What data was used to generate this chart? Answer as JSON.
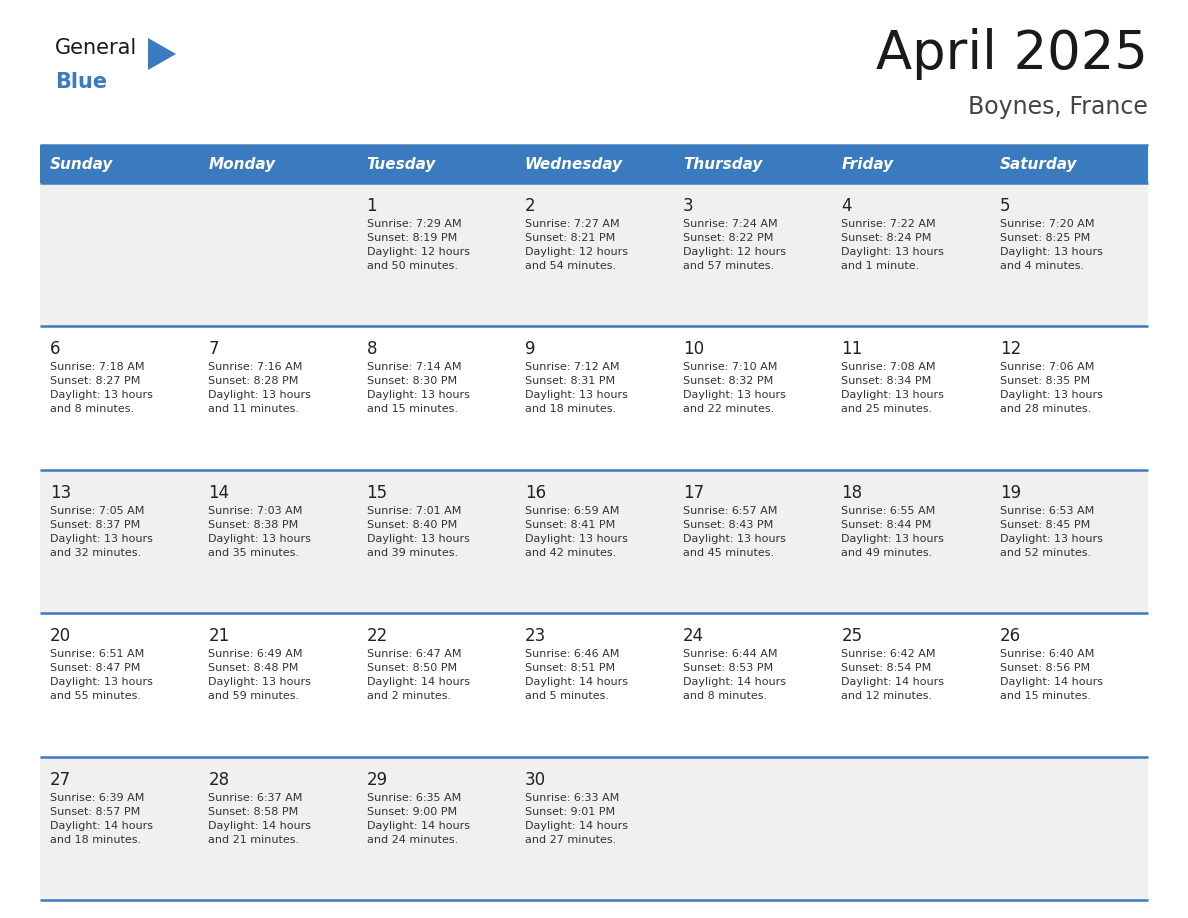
{
  "title": "April 2025",
  "subtitle": "Boynes, France",
  "days_of_week": [
    "Sunday",
    "Monday",
    "Tuesday",
    "Wednesday",
    "Thursday",
    "Friday",
    "Saturday"
  ],
  "header_bg": "#3a7abf",
  "header_text": "#ffffff",
  "row_bg_odd": "#f0f0f0",
  "row_bg_even": "#ffffff",
  "cell_text_color": "#333333",
  "day_num_color": "#222222",
  "divider_color": "#3a7abf",
  "title_color": "#1a1a1a",
  "subtitle_color": "#444444",
  "logo_general_color": "#1a1a1a",
  "logo_blue_color": "#3a7abf",
  "weeks": [
    [
      {
        "day": null,
        "text": ""
      },
      {
        "day": null,
        "text": ""
      },
      {
        "day": 1,
        "text": "Sunrise: 7:29 AM\nSunset: 8:19 PM\nDaylight: 12 hours\nand 50 minutes."
      },
      {
        "day": 2,
        "text": "Sunrise: 7:27 AM\nSunset: 8:21 PM\nDaylight: 12 hours\nand 54 minutes."
      },
      {
        "day": 3,
        "text": "Sunrise: 7:24 AM\nSunset: 8:22 PM\nDaylight: 12 hours\nand 57 minutes."
      },
      {
        "day": 4,
        "text": "Sunrise: 7:22 AM\nSunset: 8:24 PM\nDaylight: 13 hours\nand 1 minute."
      },
      {
        "day": 5,
        "text": "Sunrise: 7:20 AM\nSunset: 8:25 PM\nDaylight: 13 hours\nand 4 minutes."
      }
    ],
    [
      {
        "day": 6,
        "text": "Sunrise: 7:18 AM\nSunset: 8:27 PM\nDaylight: 13 hours\nand 8 minutes."
      },
      {
        "day": 7,
        "text": "Sunrise: 7:16 AM\nSunset: 8:28 PM\nDaylight: 13 hours\nand 11 minutes."
      },
      {
        "day": 8,
        "text": "Sunrise: 7:14 AM\nSunset: 8:30 PM\nDaylight: 13 hours\nand 15 minutes."
      },
      {
        "day": 9,
        "text": "Sunrise: 7:12 AM\nSunset: 8:31 PM\nDaylight: 13 hours\nand 18 minutes."
      },
      {
        "day": 10,
        "text": "Sunrise: 7:10 AM\nSunset: 8:32 PM\nDaylight: 13 hours\nand 22 minutes."
      },
      {
        "day": 11,
        "text": "Sunrise: 7:08 AM\nSunset: 8:34 PM\nDaylight: 13 hours\nand 25 minutes."
      },
      {
        "day": 12,
        "text": "Sunrise: 7:06 AM\nSunset: 8:35 PM\nDaylight: 13 hours\nand 28 minutes."
      }
    ],
    [
      {
        "day": 13,
        "text": "Sunrise: 7:05 AM\nSunset: 8:37 PM\nDaylight: 13 hours\nand 32 minutes."
      },
      {
        "day": 14,
        "text": "Sunrise: 7:03 AM\nSunset: 8:38 PM\nDaylight: 13 hours\nand 35 minutes."
      },
      {
        "day": 15,
        "text": "Sunrise: 7:01 AM\nSunset: 8:40 PM\nDaylight: 13 hours\nand 39 minutes."
      },
      {
        "day": 16,
        "text": "Sunrise: 6:59 AM\nSunset: 8:41 PM\nDaylight: 13 hours\nand 42 minutes."
      },
      {
        "day": 17,
        "text": "Sunrise: 6:57 AM\nSunset: 8:43 PM\nDaylight: 13 hours\nand 45 minutes."
      },
      {
        "day": 18,
        "text": "Sunrise: 6:55 AM\nSunset: 8:44 PM\nDaylight: 13 hours\nand 49 minutes."
      },
      {
        "day": 19,
        "text": "Sunrise: 6:53 AM\nSunset: 8:45 PM\nDaylight: 13 hours\nand 52 minutes."
      }
    ],
    [
      {
        "day": 20,
        "text": "Sunrise: 6:51 AM\nSunset: 8:47 PM\nDaylight: 13 hours\nand 55 minutes."
      },
      {
        "day": 21,
        "text": "Sunrise: 6:49 AM\nSunset: 8:48 PM\nDaylight: 13 hours\nand 59 minutes."
      },
      {
        "day": 22,
        "text": "Sunrise: 6:47 AM\nSunset: 8:50 PM\nDaylight: 14 hours\nand 2 minutes."
      },
      {
        "day": 23,
        "text": "Sunrise: 6:46 AM\nSunset: 8:51 PM\nDaylight: 14 hours\nand 5 minutes."
      },
      {
        "day": 24,
        "text": "Sunrise: 6:44 AM\nSunset: 8:53 PM\nDaylight: 14 hours\nand 8 minutes."
      },
      {
        "day": 25,
        "text": "Sunrise: 6:42 AM\nSunset: 8:54 PM\nDaylight: 14 hours\nand 12 minutes."
      },
      {
        "day": 26,
        "text": "Sunrise: 6:40 AM\nSunset: 8:56 PM\nDaylight: 14 hours\nand 15 minutes."
      }
    ],
    [
      {
        "day": 27,
        "text": "Sunrise: 6:39 AM\nSunset: 8:57 PM\nDaylight: 14 hours\nand 18 minutes."
      },
      {
        "day": 28,
        "text": "Sunrise: 6:37 AM\nSunset: 8:58 PM\nDaylight: 14 hours\nand 21 minutes."
      },
      {
        "day": 29,
        "text": "Sunrise: 6:35 AM\nSunset: 9:00 PM\nDaylight: 14 hours\nand 24 minutes."
      },
      {
        "day": 30,
        "text": "Sunrise: 6:33 AM\nSunset: 9:01 PM\nDaylight: 14 hours\nand 27 minutes."
      },
      {
        "day": null,
        "text": ""
      },
      {
        "day": null,
        "text": ""
      },
      {
        "day": null,
        "text": ""
      }
    ]
  ]
}
